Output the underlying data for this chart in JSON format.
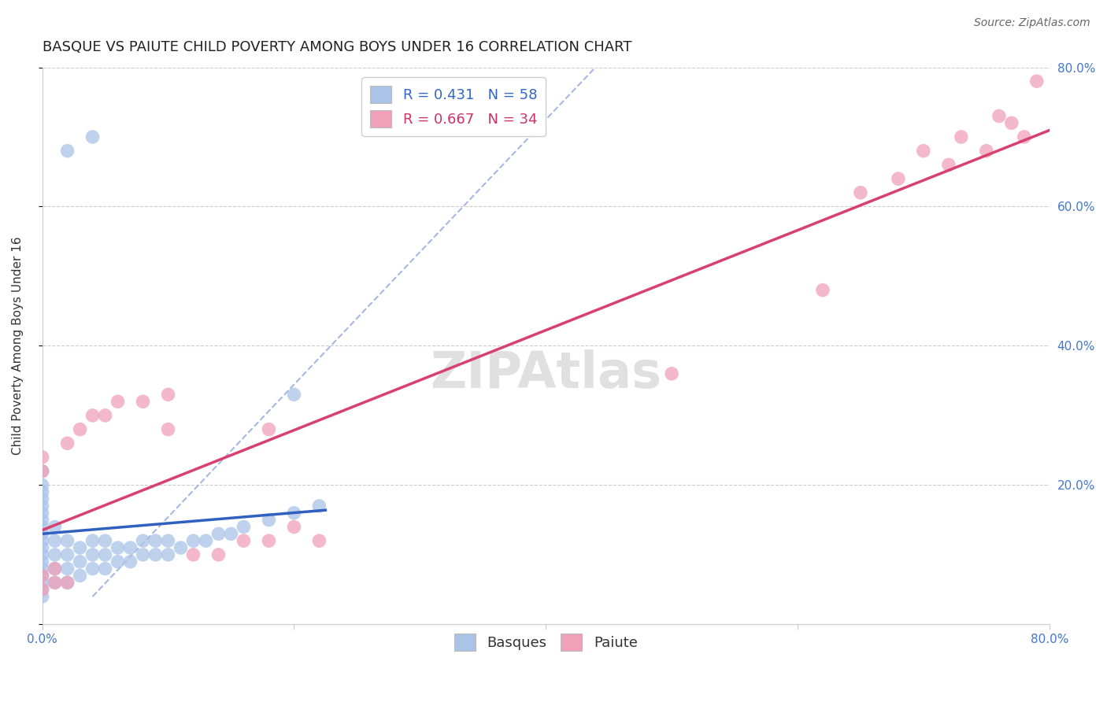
{
  "title": "BASQUE VS PAIUTE CHILD POVERTY AMONG BOYS UNDER 16 CORRELATION CHART",
  "source": "Source: ZipAtlas.com",
  "ylabel": "Child Poverty Among Boys Under 16",
  "xlim": [
    0.0,
    0.8
  ],
  "ylim": [
    0.0,
    0.8
  ],
  "background_color": "#ffffff",
  "basque_color": "#aac4e8",
  "basque_line_color": "#3060c0",
  "paiute_color": "#f0a0b8",
  "paiute_line_color": "#d84070",
  "diag_color": "#99aadd",
  "title_fontsize": 13,
  "axis_label_fontsize": 11,
  "tick_fontsize": 11,
  "legend_fontsize": 13,
  "basque_R": 0.431,
  "basque_N": 58,
  "paiute_R": 0.667,
  "paiute_N": 34,
  "basque_x": [
    0.0,
    0.0,
    0.0,
    0.0,
    0.0,
    0.0,
    0.0,
    0.0,
    0.0,
    0.0,
    0.0,
    0.0,
    0.0,
    0.0,
    0.0,
    0.0,
    0.0,
    0.0,
    0.01,
    0.01,
    0.01,
    0.01,
    0.01,
    0.02,
    0.02,
    0.02,
    0.02,
    0.03,
    0.03,
    0.03,
    0.04,
    0.04,
    0.04,
    0.05,
    0.05,
    0.05,
    0.06,
    0.06,
    0.07,
    0.07,
    0.08,
    0.08,
    0.09,
    0.09,
    0.1,
    0.1,
    0.11,
    0.12,
    0.13,
    0.14,
    0.15,
    0.16,
    0.18,
    0.2,
    0.22,
    0.02,
    0.04,
    0.2
  ],
  "basque_y": [
    0.04,
    0.05,
    0.06,
    0.07,
    0.08,
    0.09,
    0.1,
    0.11,
    0.12,
    0.13,
    0.14,
    0.15,
    0.16,
    0.17,
    0.18,
    0.19,
    0.2,
    0.22,
    0.06,
    0.08,
    0.1,
    0.12,
    0.14,
    0.06,
    0.08,
    0.1,
    0.12,
    0.07,
    0.09,
    0.11,
    0.08,
    0.1,
    0.12,
    0.08,
    0.1,
    0.12,
    0.09,
    0.11,
    0.09,
    0.11,
    0.1,
    0.12,
    0.1,
    0.12,
    0.1,
    0.12,
    0.11,
    0.12,
    0.12,
    0.13,
    0.13,
    0.14,
    0.15,
    0.16,
    0.17,
    0.68,
    0.7,
    0.33
  ],
  "paiute_x": [
    0.0,
    0.0,
    0.0,
    0.0,
    0.01,
    0.01,
    0.02,
    0.02,
    0.03,
    0.04,
    0.05,
    0.06,
    0.08,
    0.1,
    0.12,
    0.14,
    0.16,
    0.18,
    0.2,
    0.22,
    0.1,
    0.18,
    0.5,
    0.62,
    0.65,
    0.68,
    0.7,
    0.72,
    0.73,
    0.75,
    0.76,
    0.77,
    0.78,
    0.79
  ],
  "paiute_y": [
    0.05,
    0.07,
    0.22,
    0.24,
    0.06,
    0.08,
    0.06,
    0.26,
    0.28,
    0.3,
    0.3,
    0.32,
    0.32,
    0.28,
    0.1,
    0.1,
    0.12,
    0.12,
    0.14,
    0.12,
    0.33,
    0.28,
    0.36,
    0.48,
    0.62,
    0.64,
    0.68,
    0.66,
    0.7,
    0.68,
    0.73,
    0.72,
    0.7,
    0.78
  ]
}
